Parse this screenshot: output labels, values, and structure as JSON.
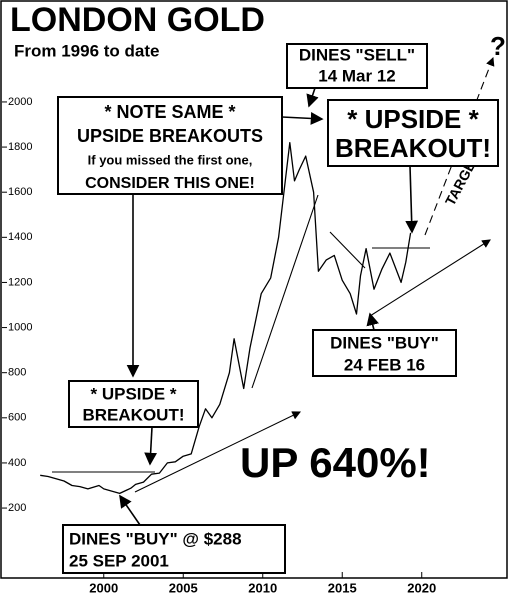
{
  "chart_data": {
    "type": "line",
    "title": "LONDON GOLD",
    "subtitle": "From 1996 to date",
    "x": [
      1996,
      1996.5,
      1997,
      1997.5,
      1998,
      1998.5,
      1999,
      1999.7,
      2000,
      2000.5,
      2001,
      2001.7,
      2002,
      2002.5,
      2003,
      2003.5,
      2004,
      2004.5,
      2005,
      2005.5,
      2006,
      2006.4,
      2006.8,
      2007.3,
      2007.9,
      2008.2,
      2008.8,
      2009.2,
      2009.9,
      2010.5,
      2011,
      2011.7,
      2012,
      2012.3,
      2012.7,
      2013.2,
      2013.5,
      2014,
      2014.5,
      2015,
      2015.5,
      2015.9,
      2016.15,
      2016.5,
      2017,
      2017.5,
      2018,
      2018.7,
      2019,
      2019.3
    ],
    "values": [
      345,
      340,
      330,
      320,
      300,
      295,
      285,
      300,
      285,
      275,
      265,
      288,
      305,
      315,
      350,
      355,
      400,
      405,
      430,
      440,
      560,
      640,
      600,
      660,
      800,
      950,
      730,
      910,
      1150,
      1220,
      1400,
      1820,
      1650,
      1700,
      1760,
      1600,
      1250,
      1300,
      1320,
      1210,
      1150,
      1060,
      1230,
      1350,
      1170,
      1260,
      1330,
      1200,
      1290,
      1420
    ],
    "color": "#000000",
    "xlim": [
      1993.6,
      2025.3
    ],
    "xticks": [
      2000,
      2005,
      2010,
      2015,
      2020
    ],
    "ylim": [
      -110,
      2443
    ],
    "yticks": [
      200,
      400,
      600,
      800,
      1000,
      1200,
      1400,
      1600,
      1800,
      2000
    ],
    "annotations": [
      {
        "lines": [
          "DINES \"SELL\"",
          "14 Mar 12"
        ]
      },
      {
        "lines": [
          "* NOTE SAME *",
          "UPSIDE BREAKOUTS",
          "If you missed the first one,",
          "CONSIDER THIS ONE!"
        ]
      },
      {
        "lines": [
          "* UPSIDE *",
          "BREAKOUT!"
        ]
      },
      {
        "lines": [
          "DINES \"BUY\"",
          "24 FEB 16"
        ]
      },
      {
        "lines": [
          "* UPSIDE *",
          "BREAKOUT!"
        ]
      },
      {
        "lines": [
          "DINES \"BUY\" @ $288",
          "25 SEP 2001"
        ]
      }
    ],
    "big_label": "UP 640%!",
    "target_label": "TARGET",
    "question": "?"
  }
}
